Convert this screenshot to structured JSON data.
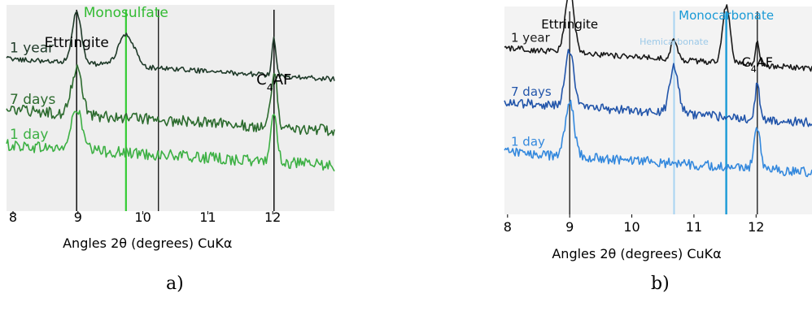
{
  "chart_data": [
    {
      "type": "line",
      "panel_label": "a)",
      "xlabel": "Angles 2θ (degrees) CuKα",
      "xlim": [
        7.9,
        12.95
      ],
      "xticks": [
        8,
        9,
        10,
        11,
        12
      ],
      "ylim": [
        0,
        1
      ],
      "grid": false,
      "plot_background": "#eeeeee",
      "series": [
        {
          "name": "1 year",
          "color": "#1f3a29",
          "offset": 0.74,
          "amp": 0.34,
          "noise": 0.012,
          "peaks": [
            [
              8.98,
              0.28,
              0.07
            ],
            [
              9.75,
              0.17,
              0.12
            ],
            [
              12.02,
              0.2,
              0.03
            ]
          ]
        },
        {
          "name": "7 days",
          "color": "#2c6b2e",
          "offset": 0.49,
          "amp": 0.34,
          "noise": 0.028,
          "peaks": [
            [
              8.98,
              0.25,
              0.08
            ],
            [
              12.02,
              0.28,
              0.05
            ]
          ]
        },
        {
          "name": "1 day",
          "color": "#3cb043",
          "offset": 0.32,
          "amp": 0.34,
          "noise": 0.028,
          "peaks": [
            [
              8.98,
              0.22,
              0.08
            ],
            [
              12.02,
              0.26,
              0.05
            ]
          ]
        }
      ],
      "reference_lines": [
        {
          "x": 8.98,
          "label": "Ettringite",
          "color": "#000000",
          "width": 1.4,
          "label_color": "#000000"
        },
        {
          "x": 9.74,
          "label": "Monosulfate",
          "color": "#33cc33",
          "width": 2.2,
          "label_color": "#33bb33"
        },
        {
          "x": 10.24,
          "label": "",
          "color": "#000000",
          "width": 1.2,
          "label_color": "#000000"
        },
        {
          "x": 12.02,
          "label": "C4AF",
          "color": "#000000",
          "width": 1.4,
          "label_color": "#000000"
        }
      ]
    },
    {
      "type": "line",
      "panel_label": "b)",
      "xlabel": "Angles 2θ (degrees) CuKα",
      "xlim": [
        7.95,
        12.9
      ],
      "xticks": [
        8,
        9,
        10,
        11,
        12
      ],
      "ylim": [
        0,
        1
      ],
      "grid": false,
      "plot_background": "#f3f3f3",
      "series": [
        {
          "name": "1 year",
          "color": "#1a1a1a",
          "offset": 0.8,
          "amp": 0.36,
          "noise": 0.014,
          "peaks": [
            [
              9.0,
              0.33,
              0.07
            ],
            [
              10.68,
              0.1,
              0.05
            ],
            [
              11.52,
              0.31,
              0.06
            ],
            [
              12.02,
              0.14,
              0.03
            ]
          ]
        },
        {
          "name": "7 days",
          "color": "#2255aa",
          "offset": 0.54,
          "amp": 0.36,
          "noise": 0.022,
          "peaks": [
            [
              9.0,
              0.3,
              0.07
            ],
            [
              10.68,
              0.26,
              0.07
            ],
            [
              12.02,
              0.18,
              0.04
            ]
          ]
        },
        {
          "name": "1 day",
          "color": "#3388dd",
          "offset": 0.3,
          "amp": 0.36,
          "noise": 0.024,
          "peaks": [
            [
              9.0,
              0.3,
              0.07
            ],
            [
              12.02,
              0.22,
              0.05
            ]
          ]
        }
      ],
      "reference_lines": [
        {
          "x": 9.0,
          "label": "Ettringite",
          "color": "#000000",
          "width": 1.2,
          "label_color": "#000000"
        },
        {
          "x": 10.68,
          "label": "Hemicarbonate",
          "color": "#a8d4f2",
          "width": 2.0,
          "label_color": "#9cc9e8"
        },
        {
          "x": 11.52,
          "label": "Monocarbonate",
          "color": "#1a9ad6",
          "width": 2.4,
          "label_color": "#1a9ad6"
        },
        {
          "x": 12.02,
          "label": "C4AF",
          "color": "#000000",
          "width": 1.2,
          "label_color": "#000000"
        }
      ]
    }
  ]
}
